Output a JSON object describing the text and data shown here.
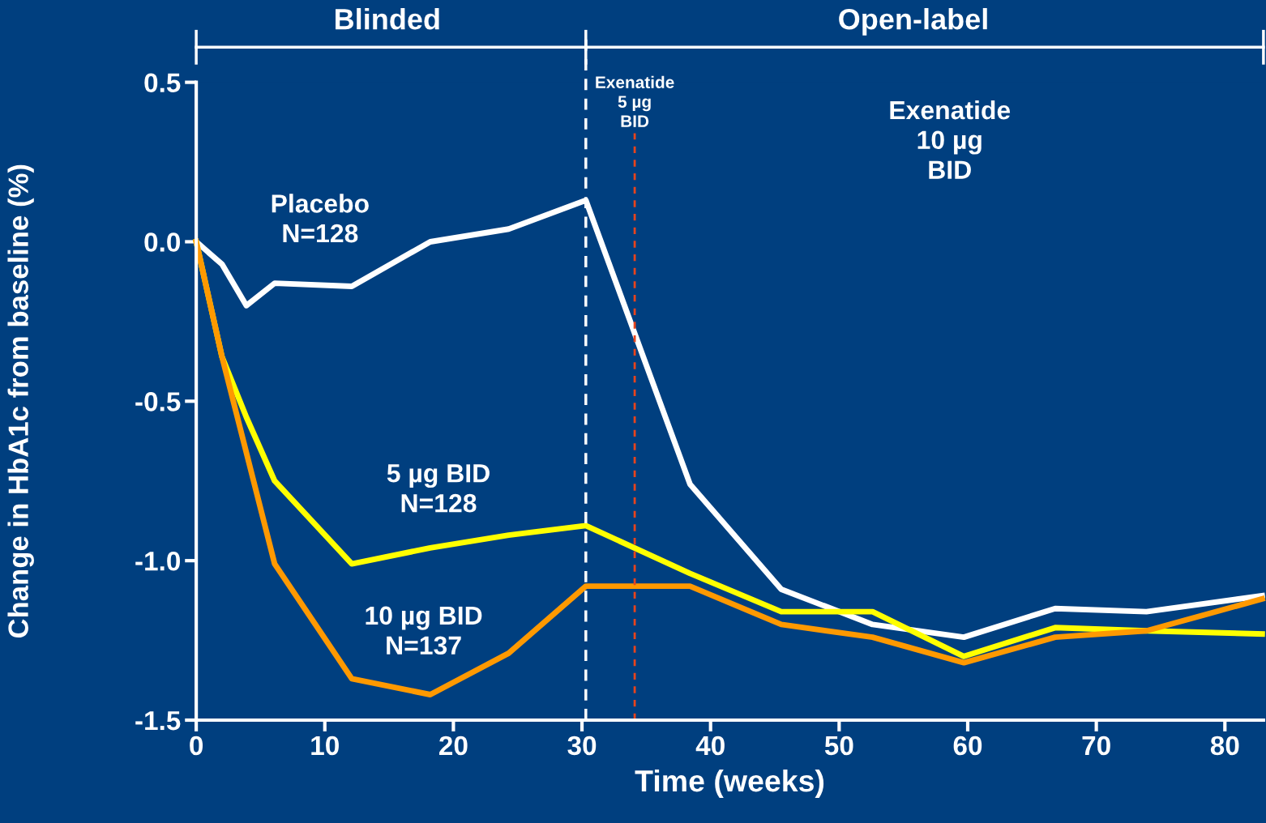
{
  "chart_data": {
    "type": "line",
    "xlabel": "Time (weeks)",
    "ylabel": "Change in HbA1c from baseline (%)",
    "series": [
      {
        "color": "#ffffff",
        "x": [
          0,
          2,
          3.9,
          6.1,
          12.1,
          18.2,
          24.3,
          30.3,
          38.4,
          45.5,
          52.6,
          59.7,
          66.8,
          73.9,
          82.9
        ],
        "values": [
          0,
          -0.07,
          -0.2,
          -0.13,
          -0.14,
          0.0,
          0.04,
          0.13,
          -0.76,
          -1.09,
          -1.2,
          -1.24,
          -1.15,
          -1.16,
          -1.11
        ]
      },
      {
        "color": "#ffff00",
        "x": [
          0,
          2,
          3.9,
          6.1,
          12.1,
          18.2,
          24.3,
          30.3,
          38.4,
          45.5,
          52.6,
          59.7,
          66.8,
          73.9,
          82.9
        ],
        "values": [
          0,
          -0.36,
          -0.55,
          -0.75,
          -1.01,
          -0.96,
          -0.92,
          -0.89,
          -1.04,
          -1.16,
          -1.16,
          -1.3,
          -1.21,
          -1.22,
          -1.23
        ]
      },
      {
        "color": "#ff9900",
        "x": [
          0,
          2,
          6.1,
          12.1,
          18.2,
          24.3,
          30.3,
          38.4,
          45.5,
          52.6,
          59.7,
          66.8,
          73.9,
          82.9
        ],
        "values": [
          0,
          -0.36,
          -1.01,
          -1.37,
          -1.42,
          -1.29,
          -1.08,
          -1.08,
          -1.2,
          -1.24,
          -1.32,
          -1.24,
          -1.22,
          -1.12
        ]
      }
    ],
    "xlim": [
      0,
      83
    ],
    "xticks": [
      0,
      10,
      20,
      30,
      40,
      50,
      60,
      70,
      80
    ],
    "ylim": [
      -1.5,
      0.5
    ],
    "yticks": [
      {
        "value": -1.5,
        "label": "-1.5"
      },
      {
        "value": -1.0,
        "label": "-1.0"
      },
      {
        "value": -0.5,
        "label": "-0.5"
      },
      {
        "value": 0,
        "label": "0.0"
      },
      {
        "value": 0.5,
        "label": "0.5"
      }
    ],
    "ref_lines": [
      {
        "axis": "x",
        "value": 30.3,
        "label": null,
        "color": "#ffffff",
        "line_style": "dashed"
      },
      {
        "axis": "x",
        "value": 34.1,
        "label": "Exenatide\n5 µg\nBID",
        "color": "#e8441c",
        "line_style": "dotted"
      }
    ],
    "annotations": [
      "Blinded",
      "Open-label",
      "Placebo\nN=128",
      "5 µg BID\nN=128",
      "10 µg BID\nN=137",
      "Exenatide\n10 µg\nBID"
    ],
    "grid": false,
    "legend": false,
    "marker": "none",
    "line_style": "solid"
  }
}
